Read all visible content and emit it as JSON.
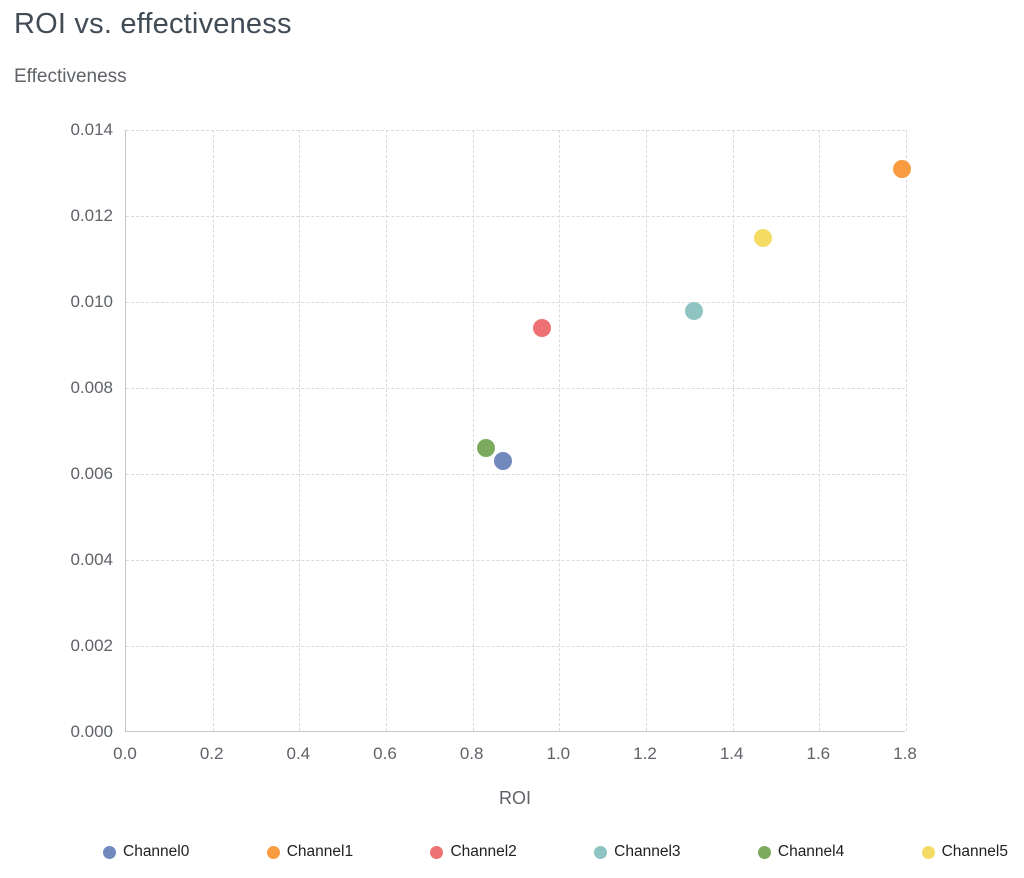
{
  "chart_data": {
    "type": "scatter",
    "title": "ROI vs. effectiveness",
    "xlabel": "ROI",
    "ylabel": "Effectiveness",
    "xlim": [
      0,
      1.8
    ],
    "ylim": [
      0,
      0.014
    ],
    "grid": "dashed",
    "legend_position": "bottom",
    "x_ticks": [
      {
        "value": 0.0,
        "label": "0.0"
      },
      {
        "value": 0.2,
        "label": "0.2"
      },
      {
        "value": 0.4,
        "label": "0.4"
      },
      {
        "value": 0.6,
        "label": "0.6"
      },
      {
        "value": 0.8,
        "label": "0.8"
      },
      {
        "value": 1.0,
        "label": "1.0"
      },
      {
        "value": 1.2,
        "label": "1.2"
      },
      {
        "value": 1.4,
        "label": "1.4"
      },
      {
        "value": 1.6,
        "label": "1.6"
      },
      {
        "value": 1.8,
        "label": "1.8"
      }
    ],
    "y_ticks": [
      {
        "value": 0.0,
        "label": "0.000"
      },
      {
        "value": 0.002,
        "label": "0.002"
      },
      {
        "value": 0.004,
        "label": "0.004"
      },
      {
        "value": 0.006,
        "label": "0.006"
      },
      {
        "value": 0.008,
        "label": "0.008"
      },
      {
        "value": 0.01,
        "label": "0.010"
      },
      {
        "value": 0.012,
        "label": "0.012"
      },
      {
        "value": 0.014,
        "label": "0.014"
      }
    ],
    "series": [
      {
        "name": "Channel0",
        "color": "#7189bd",
        "x": 0.87,
        "y": 0.0063
      },
      {
        "name": "Channel1",
        "color": "#f89c3f",
        "x": 1.79,
        "y": 0.0131
      },
      {
        "name": "Channel2",
        "color": "#ee7273",
        "x": 0.96,
        "y": 0.0094
      },
      {
        "name": "Channel3",
        "color": "#8ec5c2",
        "x": 1.31,
        "y": 0.0098
      },
      {
        "name": "Channel4",
        "color": "#7bab5d",
        "x": 0.83,
        "y": 0.0066
      },
      {
        "name": "Channel5",
        "color": "#f4db64",
        "x": 1.47,
        "y": 0.0115
      }
    ]
  }
}
